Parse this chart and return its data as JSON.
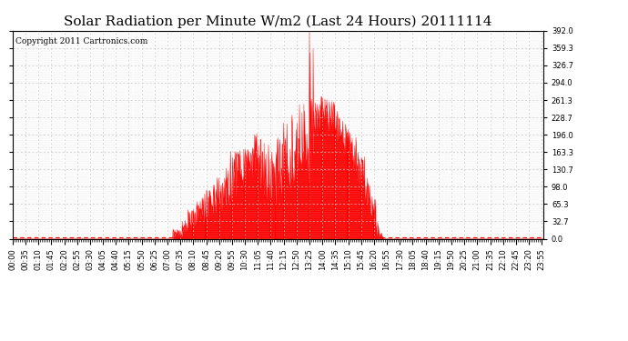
{
  "title": "Solar Radiation per Minute W/m2 (Last 24 Hours) 20111114",
  "copyright_text": "Copyright 2011 Cartronics.com",
  "y_ticks": [
    0.0,
    32.7,
    65.3,
    98.0,
    130.7,
    163.3,
    196.0,
    228.7,
    261.3,
    294.0,
    326.7,
    359.3,
    392.0
  ],
  "ymax": 392.0,
  "ymin": 0.0,
  "fill_color": "#ff0000",
  "line_color": "#ff0000",
  "bg_color": "#ffffff",
  "grid_color": "#c8c8c8",
  "dashed_line_color": "#ff0000",
  "title_fontsize": 11,
  "copyright_fontsize": 6.5,
  "tick_fontsize": 6,
  "minutes_per_day": 1440
}
